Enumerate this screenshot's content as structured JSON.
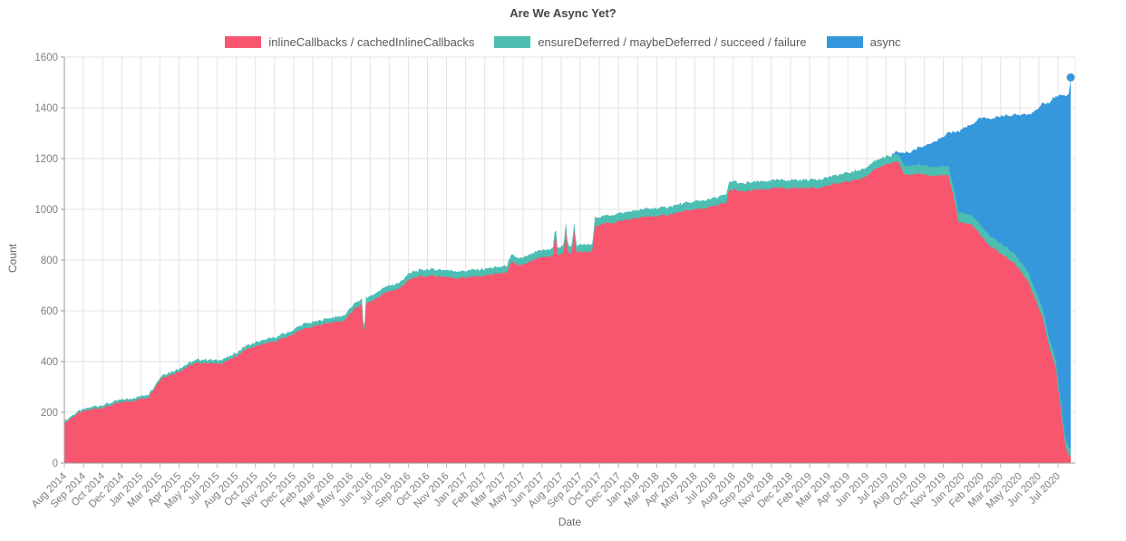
{
  "title": "Are We Async Yet?",
  "legend": [
    {
      "label": "inlineCallbacks / cachedInlineCallbacks",
      "color": "#f8566f"
    },
    {
      "label": "ensureDeferred / maybeDeferred / succeed / failure",
      "color": "#4cbfb2"
    },
    {
      "label": "async",
      "color": "#3598dc"
    }
  ],
  "chart_data": {
    "type": "area",
    "stacked": true,
    "title": "Are We Async Yet?",
    "xlabel": "Date",
    "ylabel": "Count",
    "ylim": [
      0,
      1600
    ],
    "yticks": [
      0,
      200,
      400,
      600,
      800,
      1000,
      1200,
      1400,
      1600
    ],
    "grid": true,
    "legend_position": "top",
    "x_unit": "months since Aug 2014",
    "x_tick_labels": [
      "Aug 2014",
      "Sep 2014",
      "Oct 2014",
      "Dec 2014",
      "Jan 2015",
      "Mar 2015",
      "Apr 2015",
      "May 2015",
      "Jul 2015",
      "Aug 2015",
      "Oct 2015",
      "Nov 2015",
      "Dec 2015",
      "Feb 2016",
      "Mar 2016",
      "May 2016",
      "Jun 2016",
      "Jul 2016",
      "Sep 2016",
      "Oct 2016",
      "Nov 2016",
      "Jan 2017",
      "Feb 2017",
      "Mar 2017",
      "May 2017",
      "Jun 2017",
      "Aug 2017",
      "Sep 2017",
      "Oct 2017",
      "Dec 2017",
      "Jan 2018",
      "Mar 2018",
      "Apr 2018",
      "May 2018",
      "Jul 2018",
      "Aug 2018",
      "Sep 2018",
      "Nov 2018",
      "Dec 2018",
      "Feb 2019",
      "Mar 2019",
      "Apr 2019",
      "Jun 2019",
      "Jul 2019",
      "Aug 2019",
      "Oct 2019",
      "Nov 2019",
      "Jan 2020",
      "Feb 2020",
      "Mar 2020",
      "May 2020",
      "Jun 2020",
      "Jul 2020"
    ],
    "x": [
      0,
      0.5,
      1,
      1.5,
      2,
      3,
      3.5,
      4,
      5,
      6,
      6.5,
      7,
      8,
      9,
      9.5,
      10,
      11,
      12,
      13,
      14,
      15,
      16,
      17,
      18,
      19,
      20,
      20.5,
      21,
      21.3,
      21.45,
      21.6,
      22,
      23,
      24,
      24.5,
      25,
      26,
      27,
      28,
      29,
      30,
      31,
      31.7,
      32,
      32.7,
      33,
      34,
      35,
      35.15,
      35.3,
      35.75,
      35.9,
      36.05,
      36.35,
      36.5,
      36.65,
      37,
      37.85,
      37.95,
      38,
      39,
      40,
      41,
      42,
      43,
      44,
      45,
      46,
      47,
      47.4,
      47.6,
      48,
      48.5,
      49,
      50,
      51,
      52,
      53,
      54,
      55,
      56,
      57,
      57.5,
      58,
      58.5,
      59,
      59.5,
      59.8,
      60.1,
      60.5,
      61,
      62,
      63,
      63.3,
      63.8,
      64,
      64.5,
      65,
      65.5,
      66,
      66.5,
      67,
      67.5,
      68,
      68.5,
      69,
      69.5,
      70,
      70.5,
      71,
      71.3,
      71.6,
      71.85,
      71.95,
      72.05
    ],
    "series": [
      {
        "name": "inlineCallbacks / cachedInlineCallbacks",
        "color": "#f8566f",
        "values": [
          155,
          178,
          196,
          205,
          212,
          222,
          230,
          238,
          247,
          260,
          300,
          338,
          356,
          384,
          394,
          396,
          391,
          410,
          448,
          465,
          478,
          498,
          526,
          540,
          554,
          560,
          590,
          618,
          622,
          480,
          628,
          638,
          672,
          688,
          715,
          730,
          738,
          736,
          730,
          733,
          738,
          746,
          752,
          790,
          778,
          784,
          808,
          818,
          912,
          822,
          824,
          915,
          826,
          828,
          918,
          828,
          830,
          833,
          935,
          938,
          946,
          956,
          966,
          972,
          976,
          988,
          998,
          1006,
          1020,
          1024,
          1076,
          1078,
          1068,
          1073,
          1078,
          1083,
          1084,
          1084,
          1086,
          1098,
          1108,
          1122,
          1132,
          1160,
          1170,
          1178,
          1185,
          1183,
          1138,
          1136,
          1140,
          1136,
          1132,
          1130,
          1020,
          952,
          945,
          938,
          905,
          868,
          848,
          828,
          808,
          788,
          755,
          718,
          645,
          580,
          462,
          368,
          228,
          95,
          30,
          27,
          25
        ]
      },
      {
        "name": "ensureDeferred / maybeDeferred / succeed / failure",
        "color": "#4cbfb2",
        "values": [
          8,
          8,
          8,
          9,
          9,
          10,
          10,
          10,
          10,
          10,
          9,
          9,
          10,
          12,
          12,
          12,
          12,
          13,
          14,
          15,
          16,
          16,
          18,
          18,
          18,
          20,
          21,
          22,
          22,
          22,
          22,
          22,
          22,
          23,
          24,
          25,
          26,
          26,
          26,
          26,
          26,
          26,
          27,
          28,
          28,
          28,
          28,
          28,
          30,
          28,
          28,
          32,
          28,
          28,
          32,
          28,
          28,
          29,
          30,
          30,
          30,
          30,
          30,
          31,
          31,
          31,
          31,
          31,
          31,
          32,
          32,
          32,
          32,
          32,
          32,
          32,
          32,
          32,
          33,
          33,
          34,
          34,
          34,
          32,
          31,
          30,
          28,
          28,
          35,
          35,
          35,
          35,
          36,
          36,
          38,
          38,
          38,
          38,
          40,
          40,
          40,
          40,
          39,
          38,
          37,
          36,
          35,
          34,
          33,
          32,
          32,
          31,
          30,
          30,
          30
        ]
      },
      {
        "name": "async",
        "color": "#3598dc",
        "values": [
          0,
          0,
          0,
          0,
          0,
          0,
          0,
          0,
          0,
          0,
          0,
          0,
          0,
          0,
          0,
          0,
          0,
          0,
          0,
          0,
          0,
          0,
          0,
          0,
          0,
          0,
          0,
          0,
          0,
          0,
          0,
          0,
          0,
          0,
          0,
          0,
          0,
          0,
          0,
          0,
          0,
          0,
          0,
          0,
          0,
          0,
          0,
          0,
          0,
          0,
          0,
          0,
          0,
          0,
          0,
          0,
          0,
          0,
          0,
          0,
          0,
          0,
          0,
          0,
          0,
          0,
          0,
          0,
          0,
          0,
          0,
          0,
          0,
          0,
          0,
          0,
          0,
          0,
          0,
          0,
          0,
          0,
          0,
          0,
          0,
          0,
          8,
          15,
          48,
          55,
          62,
          92,
          120,
          132,
          250,
          318,
          340,
          360,
          415,
          448,
          472,
          500,
          522,
          546,
          585,
          622,
          705,
          800,
          922,
          1045,
          1190,
          1322,
          1390,
          1395,
          1465
        ]
      }
    ],
    "end_marker": {
      "x": 72.05,
      "total": 1520
    }
  }
}
